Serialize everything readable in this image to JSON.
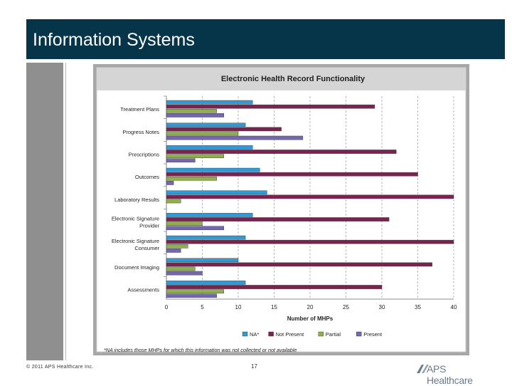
{
  "header": {
    "title": "Information Systems"
  },
  "footer": {
    "copyright": "© 2011 APS Healthcare Inc.",
    "page_number": "17",
    "logo_text": "APS Healthcare"
  },
  "colors": {
    "header_bg": "#06354a",
    "na": "#2e9bd6",
    "not_present": "#7b2350",
    "partial": "#8fb04d",
    "present": "#7466b0"
  },
  "chart_data": {
    "type": "bar",
    "orientation": "horizontal",
    "title": "Electronic Health Record Functionality",
    "xlabel": "Number of MHPs",
    "ylabel": "",
    "xlim": [
      0,
      40
    ],
    "x_ticks": [
      "0",
      "5",
      "10",
      "15",
      "20",
      "25",
      "30",
      "35",
      "40"
    ],
    "grid": "vertical dashed",
    "legend_position": "bottom",
    "footnote": "*NA includes those MHPs for which this information was not collected or not available",
    "categories": [
      "Treatment Plans",
      "Progress Notes",
      "Prescriptions",
      "Outcomes",
      "Laboratory Results",
      "Electronic Signature Provider",
      "Electronic Signature Consumer",
      "Document Imaging",
      "Assessments"
    ],
    "category_lines": [
      [
        "Treatment Plans"
      ],
      [
        "Progress Notes"
      ],
      [
        "Prescriptions"
      ],
      [
        "Outcomes"
      ],
      [
        "Laboratory Results"
      ],
      [
        "Electronic Signature",
        "Provider"
      ],
      [
        "Electronic Signature",
        "Consumer"
      ],
      [
        "Document Imaging"
      ],
      [
        "Assessments"
      ]
    ],
    "series": [
      {
        "name": "NA*",
        "color": "#2e9bd6",
        "values": [
          12,
          11,
          12,
          13,
          14,
          12,
          11,
          10,
          11
        ]
      },
      {
        "name": "Not Present",
        "color": "#7b2350",
        "values": [
          29,
          16,
          32,
          35,
          40,
          31,
          40,
          37,
          30
        ]
      },
      {
        "name": "Partial",
        "color": "#8fb04d",
        "values": [
          7,
          10,
          8,
          7,
          2,
          5,
          3,
          4,
          8
        ]
      },
      {
        "name": "Present",
        "color": "#7466b0",
        "values": [
          8,
          19,
          4,
          1,
          0,
          8,
          2,
          5,
          7
        ]
      }
    ]
  }
}
